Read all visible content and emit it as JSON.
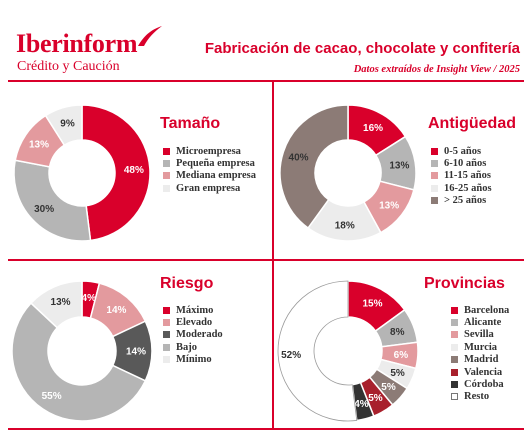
{
  "header": {
    "brand": "Iberinform",
    "brand_sub": "Crédito y Caución",
    "title": "Fabricación de cacao, chocolate y confitería",
    "subtitle": "Datos extraídos de Insight View / 2025"
  },
  "colors": {
    "accent": "#d9002b",
    "red": "#d9002b",
    "gray": "#b5b5b5",
    "pink": "#e39a9e",
    "light": "#ececec",
    "taupe": "#8c7b76",
    "dark": "#595959",
    "maroon": "#a8202c",
    "black": "#333333",
    "white": "#ffffff"
  },
  "chart_data": [
    {
      "type": "pie",
      "title": "Tamaño",
      "categories": [
        "Microempresa",
        "Pequeña empresa",
        "Mediana empresa",
        "Gran empresa"
      ],
      "values": [
        48,
        30,
        13,
        9
      ],
      "labels": [
        "48%",
        "30%",
        "13%",
        "9%"
      ],
      "colors": [
        "#d9002b",
        "#b5b5b5",
        "#e39a9e",
        "#ececec"
      ],
      "label_colors": [
        "#ffffff",
        "#333333",
        "#ffffff",
        "#333333"
      ],
      "legend_position": "right"
    },
    {
      "type": "pie",
      "title": "Antigüedad",
      "categories": [
        "0-5 años",
        "6-10 años",
        "11-15 años",
        "16-25 años",
        "> 25 años"
      ],
      "values": [
        16,
        13,
        13,
        18,
        40
      ],
      "labels": [
        "16%",
        "13%",
        "13%",
        "18%",
        "40%"
      ],
      "colors": [
        "#d9002b",
        "#b5b5b5",
        "#e39a9e",
        "#ececec",
        "#8c7b76"
      ],
      "label_colors": [
        "#ffffff",
        "#333333",
        "#ffffff",
        "#333333",
        "#333333"
      ],
      "legend_position": "right"
    },
    {
      "type": "pie",
      "title": "Riesgo",
      "categories": [
        "Máximo",
        "Elevado",
        "Moderado",
        "Bajo",
        "Mínimo"
      ],
      "values": [
        4,
        14,
        14,
        55,
        13
      ],
      "labels": [
        "4%",
        "14%",
        "14%",
        "55%",
        "13%"
      ],
      "colors": [
        "#d9002b",
        "#e39a9e",
        "#595959",
        "#b5b5b5",
        "#ececec"
      ],
      "label_colors": [
        "#ffffff",
        "#ffffff",
        "#ffffff",
        "#ffffff",
        "#333333"
      ],
      "legend_position": "right"
    },
    {
      "type": "pie",
      "title": "Provincias",
      "categories": [
        "Barcelona",
        "Alicante",
        "Sevilla",
        "Murcia",
        "Madrid",
        "Valencia",
        "Córdoba",
        "Resto"
      ],
      "values": [
        15,
        8,
        6,
        5,
        5,
        5,
        4,
        52
      ],
      "labels": [
        "15%",
        "8%",
        "6%",
        "5%",
        "5%",
        "5%",
        "4%",
        "52%"
      ],
      "colors": [
        "#d9002b",
        "#b5b5b5",
        "#e39a9e",
        "#ececec",
        "#8c7b76",
        "#a8202c",
        "#333333",
        "#ffffff"
      ],
      "label_colors": [
        "#ffffff",
        "#333333",
        "#ffffff",
        "#333333",
        "#ffffff",
        "#ffffff",
        "#ffffff",
        "#333333"
      ],
      "legend_position": "right"
    }
  ]
}
